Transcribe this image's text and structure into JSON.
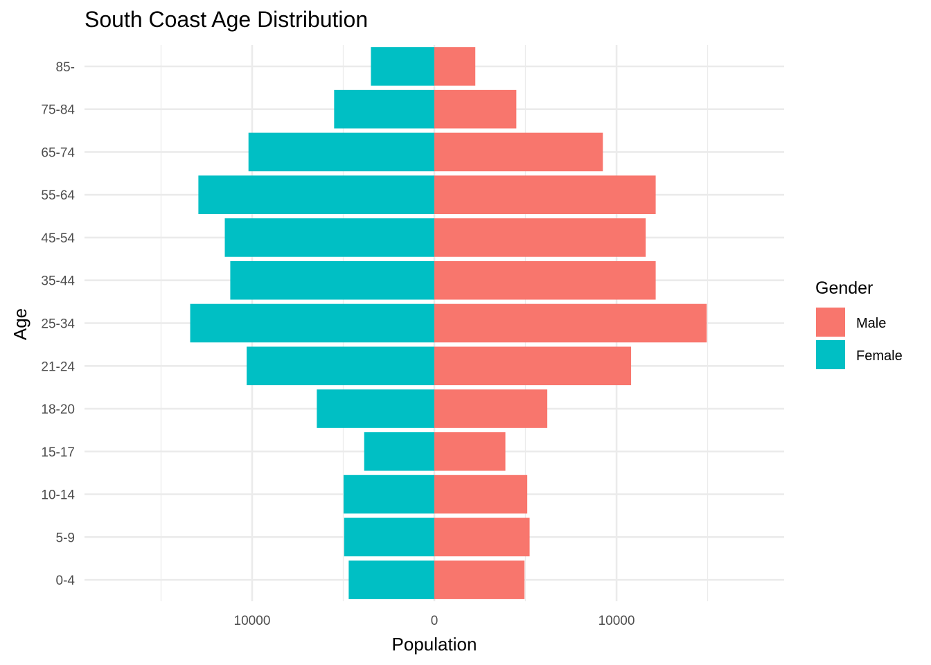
{
  "chart_data": {
    "type": "bar",
    "orientation": "horizontal",
    "title": "South Coast Age Distribution",
    "xlabel": "Population",
    "ylabel": "Age",
    "categories": [
      "0-4",
      "5-9",
      "10-14",
      "15-17",
      "18-20",
      "21-24",
      "25-34",
      "35-44",
      "45-54",
      "55-64",
      "65-74",
      "75-84",
      "85-"
    ],
    "series": [
      {
        "name": "Male",
        "color": "#F8766D",
        "values": [
          4950,
          5230,
          5100,
          3900,
          6200,
          10800,
          14950,
          12150,
          11600,
          12150,
          9250,
          4500,
          2250
        ]
      },
      {
        "name": "Female",
        "color": "#00BFC4",
        "values": [
          -4700,
          -4950,
          -4980,
          -3850,
          -6450,
          -10300,
          -13400,
          -11200,
          -11500,
          -12950,
          -10200,
          -5500,
          -3480
        ]
      }
    ],
    "xlim": [
      -19200,
      19200
    ],
    "x_ticks": [
      -10000,
      0,
      10000
    ],
    "x_tick_labels": [
      "10000",
      "0",
      "10000"
    ],
    "legend": {
      "title": "Gender",
      "position": "right"
    },
    "grid": true
  }
}
